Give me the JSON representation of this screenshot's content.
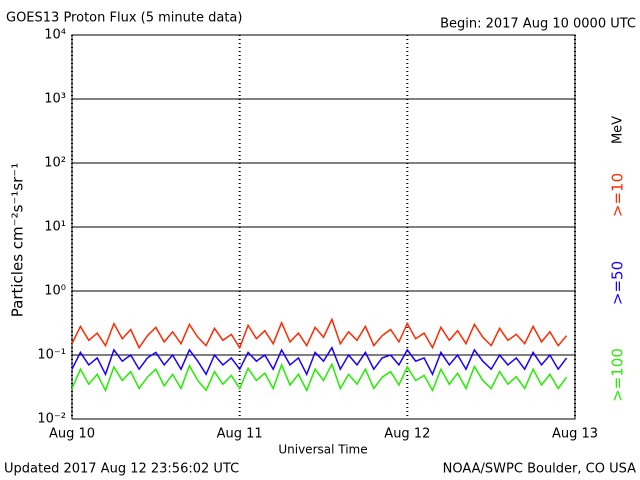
{
  "chart_data": {
    "type": "line",
    "title": "GOES13 Proton Flux (5 minute data)",
    "subtitle": "Begin: 2017 Aug 10 0000 UTC",
    "y_label": "Particles cm⁻²s⁻¹sr⁻¹",
    "x_label": "Universal Time",
    "units": "MeV",
    "footer_left": "Updated 2017 Aug 12 23:56:02 UTC",
    "footer_right": "NOAA/SWPC Boulder, CO USA",
    "ylog": true,
    "grid": true,
    "xlim": [
      0,
      3
    ],
    "xticks": [
      {
        "value": 0,
        "label": "Aug 10"
      },
      {
        "value": 1,
        "label": "Aug 11"
      },
      {
        "value": 2,
        "label": "Aug 12"
      },
      {
        "value": 3,
        "label": "Aug 13"
      }
    ],
    "ylim": [
      0.01,
      10000
    ],
    "yticks": [
      {
        "value": 0.01,
        "label": "10⁻²"
      },
      {
        "value": 0.1,
        "label": "10⁻¹"
      },
      {
        "value": 1,
        "label": "10⁰"
      },
      {
        "value": 10,
        "label": "10¹"
      },
      {
        "value": 100,
        "label": "10²"
      },
      {
        "value": 1000,
        "label": "10³"
      },
      {
        "value": 10000,
        "label": "10⁴"
      }
    ],
    "x": [
      0,
      0.05,
      0.1,
      0.15,
      0.2,
      0.25,
      0.3,
      0.35,
      0.4,
      0.45,
      0.5,
      0.55,
      0.6,
      0.65,
      0.7,
      0.75,
      0.8,
      0.85,
      0.9,
      0.95,
      1,
      1.05,
      1.1,
      1.15,
      1.2,
      1.25,
      1.3,
      1.35,
      1.4,
      1.45,
      1.5,
      1.55,
      1.6,
      1.65,
      1.7,
      1.75,
      1.8,
      1.85,
      1.9,
      1.95,
      2,
      2.05,
      2.1,
      2.15,
      2.2,
      2.25,
      2.3,
      2.35,
      2.4,
      2.45,
      2.5,
      2.55,
      2.6,
      2.65,
      2.7,
      2.75,
      2.8,
      2.85,
      2.9,
      2.95
    ],
    "series": [
      {
        "name": ">=10",
        "color": "#ff2a00",
        "values": [
          0.15,
          0.28,
          0.17,
          0.22,
          0.14,
          0.31,
          0.18,
          0.25,
          0.13,
          0.2,
          0.27,
          0.16,
          0.23,
          0.15,
          0.3,
          0.19,
          0.14,
          0.26,
          0.17,
          0.21,
          0.13,
          0.29,
          0.18,
          0.24,
          0.15,
          0.32,
          0.16,
          0.22,
          0.14,
          0.27,
          0.19,
          0.36,
          0.15,
          0.23,
          0.17,
          0.28,
          0.14,
          0.2,
          0.25,
          0.16,
          0.31,
          0.18,
          0.22,
          0.13,
          0.27,
          0.17,
          0.24,
          0.15,
          0.3,
          0.19,
          0.14,
          0.26,
          0.17,
          0.21,
          0.15,
          0.28,
          0.16,
          0.23,
          0.14,
          0.2
        ]
      },
      {
        "name": ">=50",
        "color": "#1a00ff",
        "values": [
          0.06,
          0.11,
          0.07,
          0.09,
          0.05,
          0.12,
          0.08,
          0.1,
          0.06,
          0.09,
          0.11,
          0.07,
          0.1,
          0.06,
          0.12,
          0.08,
          0.05,
          0.1,
          0.07,
          0.09,
          0.06,
          0.11,
          0.08,
          0.1,
          0.06,
          0.12,
          0.07,
          0.09,
          0.05,
          0.11,
          0.08,
          0.13,
          0.06,
          0.1,
          0.07,
          0.11,
          0.06,
          0.09,
          0.1,
          0.07,
          0.12,
          0.08,
          0.09,
          0.05,
          0.11,
          0.07,
          0.1,
          0.06,
          0.12,
          0.08,
          0.06,
          0.1,
          0.07,
          0.09,
          0.06,
          0.11,
          0.07,
          0.1,
          0.06,
          0.09
        ]
      },
      {
        "name": ">=100",
        "color": "#22ee00",
        "values": [
          0.03,
          0.06,
          0.035,
          0.05,
          0.028,
          0.065,
          0.04,
          0.055,
          0.03,
          0.045,
          0.06,
          0.033,
          0.05,
          0.03,
          0.068,
          0.04,
          0.028,
          0.055,
          0.035,
          0.048,
          0.03,
          0.062,
          0.04,
          0.052,
          0.03,
          0.07,
          0.034,
          0.05,
          0.028,
          0.06,
          0.04,
          0.072,
          0.03,
          0.05,
          0.035,
          0.06,
          0.03,
          0.045,
          0.055,
          0.034,
          0.065,
          0.04,
          0.048,
          0.028,
          0.06,
          0.035,
          0.052,
          0.03,
          0.066,
          0.04,
          0.03,
          0.055,
          0.035,
          0.046,
          0.03,
          0.06,
          0.034,
          0.05,
          0.03,
          0.045
        ]
      }
    ]
  }
}
